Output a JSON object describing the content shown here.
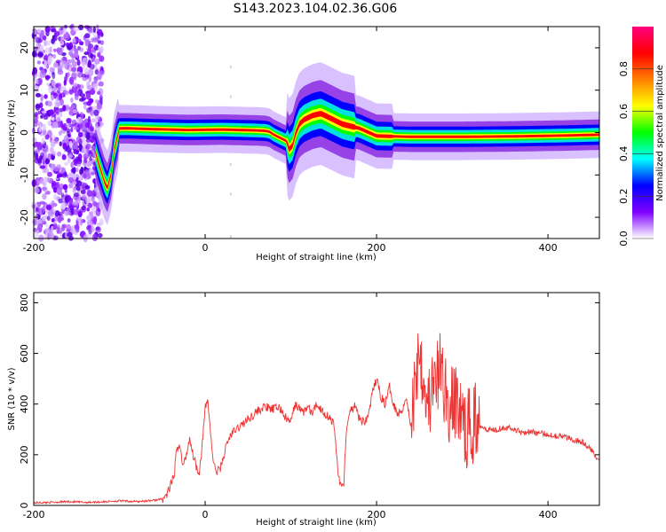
{
  "title": "S143.2023.104.02.36.G06",
  "chart_data": [
    {
      "type": "heatmap",
      "xlabel": "Height of straight line (km)",
      "ylabel": "Frequency (Hz)",
      "xlim": [
        -200,
        460
      ],
      "ylim": [
        -25,
        25
      ],
      "xticks": [
        -200,
        0,
        200,
        400
      ],
      "yticks": [
        -20,
        -10,
        0,
        10,
        20
      ],
      "colorbar": {
        "label": "Normalized spectral amplitude",
        "range": [
          0,
          1
        ],
        "ticks": [
          "0.0",
          "0.2",
          "0.4",
          "0.6",
          "0.8"
        ],
        "colors": [
          "#ffffff",
          "#8000ff",
          "#0000ff",
          "#00ffff",
          "#00ff00",
          "#ffff00",
          "#ff8000",
          "#ff0000",
          "#ff0080"
        ]
      },
      "ridge": {
        "x": [
          -200,
          -130,
          -125,
          -120,
          -117,
          -114,
          -110,
          -106,
          -100,
          -90,
          -60,
          -20,
          20,
          60,
          70,
          75,
          80,
          85,
          90,
          95,
          98,
          102,
          106,
          110,
          115,
          125,
          135,
          145,
          160,
          180,
          200,
          240,
          300,
          360,
          420,
          460
        ],
        "y": [
          0,
          -3,
          -7,
          -10,
          -12,
          -13,
          -10,
          -4,
          1,
          1,
          0.8,
          0.6,
          0.7,
          0.5,
          0.4,
          0.2,
          -0.5,
          -1,
          -1.5,
          -2,
          -4,
          -3,
          0,
          2,
          3,
          4,
          4.5,
          3.5,
          2,
          1,
          -0.8,
          -1,
          -1,
          -0.9,
          -0.7,
          -0.5
        ]
      }
    },
    {
      "type": "line",
      "xlabel": "Height of straight line (km)",
      "ylabel": "SNR (10 * v/v)",
      "xlim": [
        -200,
        460
      ],
      "ylim": [
        0,
        840
      ],
      "xticks": [
        -200,
        0,
        200,
        400
      ],
      "yticks": [
        0,
        200,
        400,
        600,
        800
      ],
      "color": "#ee3333",
      "series": [
        {
          "x": [
            -200,
            -180,
            -160,
            -140,
            -120,
            -100,
            -80,
            -60,
            -50,
            -45,
            -40,
            -36,
            -34,
            -30,
            -26,
            -22,
            -18,
            -15,
            -12,
            -10,
            -7,
            -4,
            0,
            3,
            6,
            8,
            10,
            14,
            18,
            22,
            25,
            30,
            40,
            50,
            60,
            70,
            75,
            80,
            85,
            90,
            95,
            100,
            105,
            110,
            115,
            120,
            125,
            130,
            135,
            140,
            145,
            150,
            152,
            155,
            158,
            160,
            162,
            164,
            166,
            168,
            170,
            175,
            180,
            185,
            190,
            195,
            200,
            205,
            210,
            215,
            220,
            225,
            230,
            235,
            240,
            245,
            250,
            255,
            260,
            265,
            270,
            275,
            280,
            285,
            290,
            295,
            300,
            305,
            310,
            315,
            320,
            330,
            340,
            350,
            360,
            370,
            380,
            390,
            400,
            410,
            420,
            430,
            440,
            450,
            460
          ],
          "y": [
            10,
            12,
            15,
            12,
            14,
            18,
            15,
            20,
            25,
            40,
            80,
            120,
            200,
            250,
            150,
            200,
            270,
            210,
            180,
            150,
            130,
            220,
            380,
            420,
            300,
            220,
            160,
            130,
            150,
            200,
            240,
            280,
            310,
            340,
            370,
            390,
            380,
            380,
            390,
            370,
            340,
            330,
            400,
            380,
            370,
            390,
            360,
            400,
            380,
            360,
            350,
            320,
            260,
            130,
            80,
            70,
            90,
            260,
            320,
            340,
            380,
            390,
            340,
            330,
            350,
            440,
            500,
            430,
            400,
            470,
            400,
            360,
            380,
            430,
            300,
            480,
            650,
            500,
            400,
            450,
            480,
            550,
            450,
            380,
            400,
            420,
            320,
            300,
            310,
            330,
            320,
            300,
            300,
            310,
            300,
            290,
            290,
            285,
            280,
            275,
            270,
            260,
            250,
            220,
            180
          ]
        }
      ]
    }
  ]
}
